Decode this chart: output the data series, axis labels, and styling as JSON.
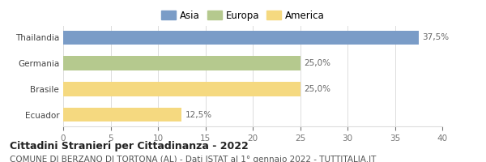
{
  "categories": [
    "Thailandia",
    "Germania",
    "Brasile",
    "Ecuador"
  ],
  "values": [
    37.5,
    25.0,
    25.0,
    12.5
  ],
  "bar_colors": [
    "#7a9cc7",
    "#b5c98e",
    "#f5d980",
    "#f5d980"
  ],
  "labels": [
    "37,5%",
    "25,0%",
    "25,0%",
    "12,5%"
  ],
  "legend": [
    {
      "label": "Asia",
      "color": "#7a9cc7"
    },
    {
      "label": "Europa",
      "color": "#b5c98e"
    },
    {
      "label": "America",
      "color": "#f5d980"
    }
  ],
  "xlim": [
    0,
    40
  ],
  "xticks": [
    0,
    5,
    10,
    15,
    20,
    25,
    30,
    35,
    40
  ],
  "title": "Cittadini Stranieri per Cittadinanza - 2022",
  "subtitle": "COMUNE DI BERZANO DI TORTONA (AL) - Dati ISTAT al 1° gennaio 2022 - TUTTITALIA.IT",
  "title_fontsize": 9,
  "subtitle_fontsize": 7.5,
  "label_fontsize": 7.5,
  "tick_fontsize": 7.5,
  "background_color": "#ffffff",
  "bar_height": 0.55,
  "grid_color": "#dddddd"
}
